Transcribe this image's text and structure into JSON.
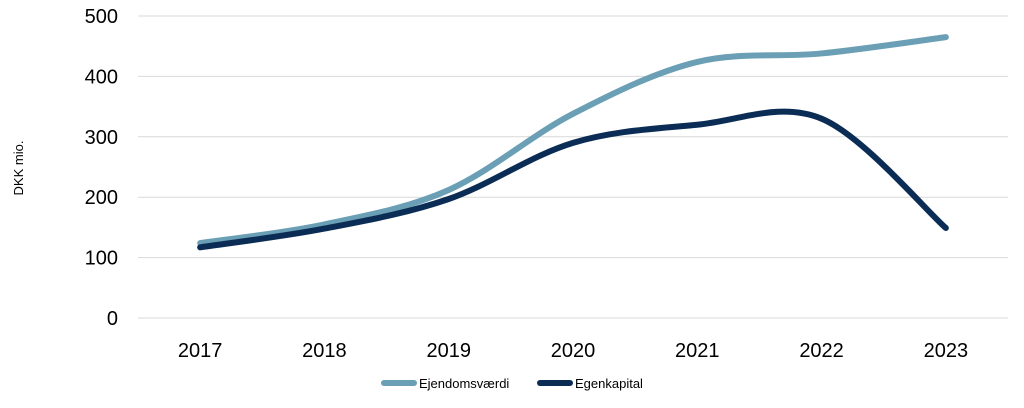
{
  "chart_data": {
    "type": "line",
    "title": "",
    "xlabel": "",
    "ylabel": "DKK mio.",
    "categories": [
      "2017",
      "2018",
      "2019",
      "2020",
      "2021",
      "2022",
      "2023"
    ],
    "ylim": [
      0,
      500
    ],
    "yticks": [
      0,
      100,
      200,
      300,
      400,
      500
    ],
    "grid": true,
    "smooth": true,
    "legend_position": "bottom",
    "series": [
      {
        "name": "Ejendomsværdi",
        "color": "#6a9fb5",
        "values": [
          124,
          155,
          212,
          338,
          424,
          438,
          465
        ]
      },
      {
        "name": "Egenkapital",
        "color": "#0b2d55",
        "values": [
          117,
          148,
          197,
          290,
          320,
          330,
          149
        ]
      }
    ]
  }
}
